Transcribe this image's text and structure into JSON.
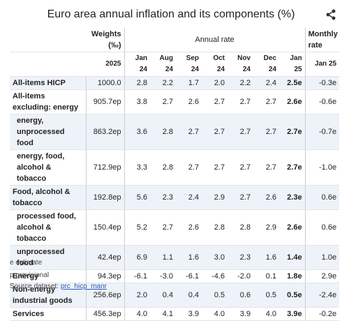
{
  "header": {
    "title": "Euro area annual inflation and its components (%)"
  },
  "table": {
    "group_headers": [
      "Weights (‰)",
      "Annual rate",
      "Monthly rate"
    ],
    "columns": [
      "2025",
      "Jan 24",
      "Aug 24",
      "Sep 24",
      "Oct 24",
      "Nov 24",
      "Dec 24",
      "Jan 25",
      "Jan 25"
    ],
    "rows": [
      {
        "label": "All-items HICP",
        "weight": "1000.0",
        "annual": [
          "2.8",
          "2.2",
          "1.7",
          "2.0",
          "2.2",
          "2.4",
          "2.5e"
        ],
        "monthly": "-0.3e",
        "indent": false
      },
      {
        "label": "All-items excluding: energy",
        "weight": "905.7ep",
        "annual": [
          "3.8",
          "2.7",
          "2.6",
          "2.7",
          "2.7",
          "2.7",
          "2.6e"
        ],
        "monthly": "-0.6e",
        "indent": false
      },
      {
        "label": "energy, unprocessed food",
        "weight": "863.2ep",
        "annual": [
          "3.6",
          "2.8",
          "2.7",
          "2.7",
          "2.7",
          "2.7",
          "2.7e"
        ],
        "monthly": "-0.7e",
        "indent": true
      },
      {
        "label": "energy, food, alcohol & tobacco",
        "weight": "712.9ep",
        "annual": [
          "3.3",
          "2.8",
          "2.7",
          "2.7",
          "2.7",
          "2.7",
          "2.7e"
        ],
        "monthly": "-1.0e",
        "indent": true
      },
      {
        "label": "Food, alcohol & tobacco",
        "weight": "192.8ep",
        "annual": [
          "5.6",
          "2.3",
          "2.4",
          "2.9",
          "2.7",
          "2.6",
          "2.3e"
        ],
        "monthly": "0.6e",
        "indent": false
      },
      {
        "label": "processed food, alcohol & tobacco",
        "weight": "150.4ep",
        "annual": [
          "5.2",
          "2.7",
          "2.6",
          "2.8",
          "2.8",
          "2.9",
          "2.6e"
        ],
        "monthly": "0.6e",
        "indent": true
      },
      {
        "label": "unprocessed food",
        "weight": "42.4ep",
        "annual": [
          "6.9",
          "1.1",
          "1.6",
          "3.0",
          "2.3",
          "1.6",
          "1.4e"
        ],
        "monthly": "1.0e",
        "indent": true
      },
      {
        "label": "Energy",
        "weight": "94.3ep",
        "annual": [
          "-6.1",
          "-3.0",
          "-6.1",
          "-4.6",
          "-2.0",
          "0.1",
          "1.8e"
        ],
        "monthly": "2.9e",
        "indent": false
      },
      {
        "label": "Non-energy industrial goods",
        "weight": "256.6ep",
        "annual": [
          "2.0",
          "0.4",
          "0.4",
          "0.5",
          "0.6",
          "0.5",
          "0.5e"
        ],
        "monthly": "-2.4e",
        "indent": false
      },
      {
        "label": "Services",
        "weight": "456.3ep",
        "annual": [
          "4.0",
          "4.1",
          "3.9",
          "4.0",
          "3.9",
          "4.0",
          "3.9e"
        ],
        "monthly": "-0.2e",
        "indent": false
      }
    ]
  },
  "footnotes": [
    "e estimate",
    "p provisional"
  ],
  "source": {
    "text": "Source dataset:",
    "link": "prc_hicp_manr"
  }
}
